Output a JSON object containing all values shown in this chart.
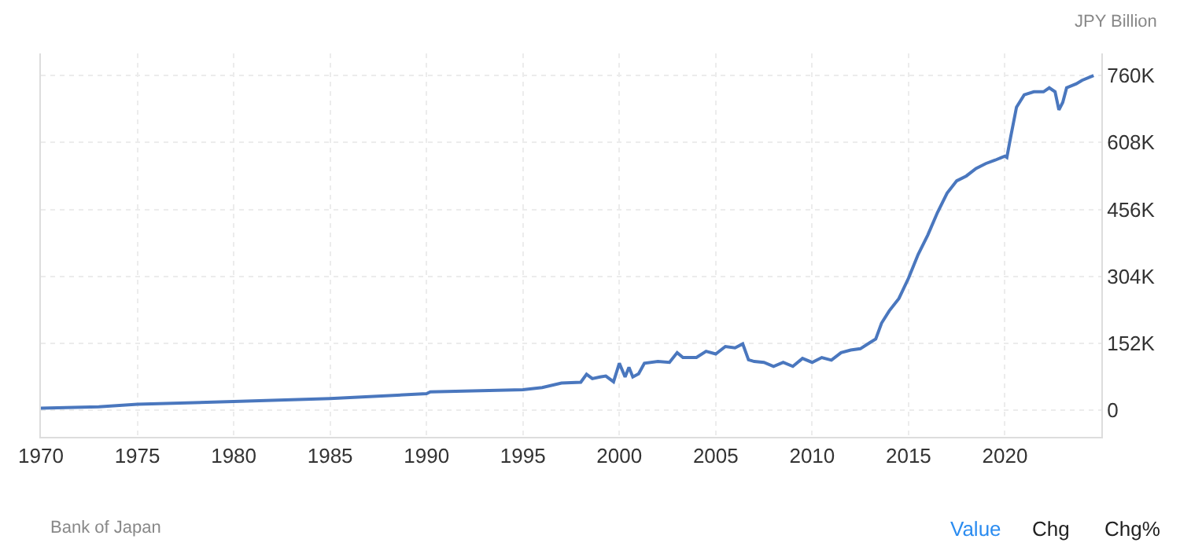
{
  "chart_data": {
    "type": "line",
    "ylabel": "JPY Billion",
    "annotations": [
      "Bank of Japan",
      "Value",
      "Chg",
      "Chg%"
    ],
    "x": [
      1970,
      1973,
      1975,
      1980,
      1985,
      1990,
      1990.2,
      1995,
      1996,
      1997,
      1998,
      1998.3,
      1998.6,
      1999,
      1999.3,
      1999.7,
      2000,
      2000.3,
      2000.5,
      2000.7,
      2001,
      2001.3,
      2002,
      2002.6,
      2003,
      2003.3,
      2004,
      2004.5,
      2005,
      2005.5,
      2006,
      2006.4,
      2006.7,
      2007,
      2007.5,
      2008,
      2008.5,
      2009,
      2009.5,
      2010,
      2010.5,
      2011,
      2011.5,
      2012,
      2012.5,
      2013,
      2013.3,
      2013.6,
      2014,
      2014.5,
      2015,
      2015.5,
      2016,
      2016.5,
      2017,
      2017.5,
      2018,
      2018.5,
      2019,
      2019.5,
      2020,
      2020.1,
      2020.3,
      2020.6,
      2021,
      2021.5,
      2022,
      2022.3,
      2022.6,
      2022.8,
      2023,
      2023.2,
      2023.7,
      2024,
      2024.6
    ],
    "series": [
      {
        "color": "#4a77be",
        "values": [
          5000,
          8000,
          14000,
          20000,
          27000,
          38000,
          42000,
          47000,
          52000,
          62000,
          64000,
          82000,
          72000,
          76000,
          78000,
          65000,
          107000,
          76000,
          98000,
          76000,
          83000,
          107000,
          111000,
          109000,
          131000,
          120000,
          120000,
          134000,
          128000,
          145000,
          142000,
          151000,
          115000,
          111000,
          109000,
          100000,
          109000,
          100000,
          118000,
          109000,
          120000,
          114000,
          131000,
          137000,
          140000,
          154000,
          162000,
          198000,
          226000,
          254000,
          300000,
          354000,
          398000,
          449000,
          493000,
          521000,
          532000,
          549000,
          560000,
          568000,
          577000,
          574000,
          621000,
          688000,
          716000,
          723000,
          723000,
          732000,
          723000,
          682000,
          699000,
          732000,
          741000,
          749000,
          760000
        ]
      }
    ],
    "xlim": [
      1970,
      2025
    ],
    "xticks": [
      1970,
      1975,
      1980,
      1985,
      1990,
      1995,
      2000,
      2005,
      2010,
      2015,
      2020
    ],
    "ylim": [
      -60000,
      810000
    ],
    "yticks": [
      0,
      {
        "value": 152000,
        "label": "152K"
      },
      {
        "value": 304000,
        "label": "304K"
      },
      {
        "value": 456000,
        "label": "456K"
      },
      {
        "value": 608000,
        "label": "608K"
      },
      {
        "value": 760000,
        "label": "760K"
      }
    ],
    "grid": true,
    "marker": "none",
    "line_style": "solid"
  }
}
